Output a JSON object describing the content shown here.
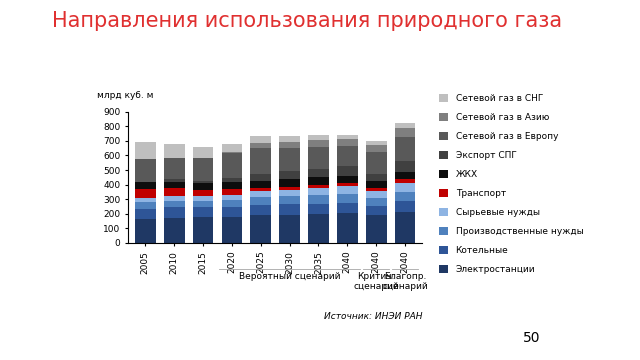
{
  "chart_data": {
    "type": "bar",
    "stacked": true,
    "title": "Направления использования природного газа",
    "y_label": "млрд куб. м",
    "source": "Источник: ИНЭИ РАН",
    "page_number": "50",
    "categories": [
      "2005",
      "2010",
      "2015",
      "2020",
      "2025",
      "2030",
      "2035",
      "2040",
      "2040",
      "2040"
    ],
    "category_groups": [
      null,
      null,
      null,
      "Вероятный сценарий",
      "Вероятный сценарий",
      "Вероятный сценарий",
      "Вероятный сценарий",
      "Вероятный сценарий",
      "Критич. сценарий",
      "Благопр. сценарий"
    ],
    "ylim": [
      0,
      900
    ],
    "yticks": [
      0,
      100,
      200,
      300,
      400,
      500,
      600,
      700,
      800,
      900
    ],
    "grid": false,
    "legend": "right",
    "series": [
      {
        "name": "Электростанции",
        "color": "#1f3864",
        "values": [
          165,
          170,
          175,
          175,
          190,
          195,
          200,
          205,
          190,
          215
        ]
      },
      {
        "name": "Котельные",
        "color": "#2e5597",
        "values": [
          70,
          75,
          70,
          70,
          70,
          70,
          70,
          70,
          65,
          70
        ]
      },
      {
        "name": "Производственные нужды",
        "color": "#4f81bd",
        "values": [
          45,
          45,
          45,
          50,
          55,
          55,
          60,
          60,
          55,
          65
        ]
      },
      {
        "name": "Сырьевые нужды",
        "color": "#8eb4e3",
        "values": [
          30,
          30,
          30,
          35,
          40,
          45,
          50,
          55,
          45,
          60
        ]
      },
      {
        "name": "Транспорт",
        "color": "#c00000",
        "values": [
          60,
          55,
          45,
          40,
          20,
          20,
          20,
          20,
          20,
          25
        ]
      },
      {
        "name": "ЖКХ",
        "color": "#0d0d0d",
        "values": [
          45,
          45,
          45,
          50,
          50,
          50,
          50,
          50,
          50,
          50
        ]
      },
      {
        "name": "Экспорт СПГ",
        "color": "#404040",
        "values": [
          0,
          15,
          15,
          25,
          45,
          55,
          60,
          65,
          45,
          80
        ]
      },
      {
        "name": "Сетевой газ в Европу",
        "color": "#595959",
        "values": [
          160,
          150,
          160,
          170,
          180,
          160,
          150,
          140,
          150,
          160
        ]
      },
      {
        "name": "Сетевой газ в Азию",
        "color": "#7f7f7f",
        "values": [
          0,
          0,
          0,
          10,
          35,
          45,
          45,
          45,
          50,
          60
        ]
      },
      {
        "name": "Сетевой газ в СНГ",
        "color": "#bfbfbf",
        "values": [
          115,
          95,
          75,
          55,
          45,
          35,
          35,
          30,
          30,
          35
        ]
      }
    ]
  }
}
